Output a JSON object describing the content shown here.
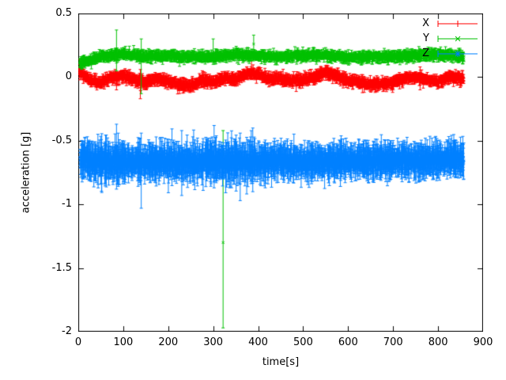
{
  "figure": {
    "background": "#ffffff"
  },
  "chart_data": {
    "type": "scatter",
    "plot_style": "points-with-errorbars",
    "title": "",
    "xlabel": "time[s]",
    "ylabel": "acceleration [g]",
    "xlim": [
      0,
      900
    ],
    "ylim": [
      -2,
      0.5
    ],
    "grid": false,
    "legend": {
      "position": "top-right",
      "entries": [
        {
          "name": "X",
          "color": "#ff0000",
          "marker": "plus"
        },
        {
          "name": "Y",
          "color": "#00c000",
          "marker": "times"
        },
        {
          "name": "Z",
          "color": "#0080ff",
          "marker": "star"
        }
      ]
    },
    "x_ticks": [
      {
        "v": 0,
        "label": "0"
      },
      {
        "v": 100,
        "label": "100"
      },
      {
        "v": 200,
        "label": "200"
      },
      {
        "v": 300,
        "label": "300"
      },
      {
        "v": 400,
        "label": "400"
      },
      {
        "v": 500,
        "label": "500"
      },
      {
        "v": 600,
        "label": "600"
      },
      {
        "v": 700,
        "label": "700"
      },
      {
        "v": 800,
        "label": "800"
      },
      {
        "v": 900,
        "label": "900"
      }
    ],
    "y_ticks": [
      {
        "v": 0.5,
        "label": "0.5"
      },
      {
        "v": 0,
        "label": "0"
      },
      {
        "v": -0.5,
        "label": "-0.5"
      },
      {
        "v": -1,
        "label": "-1"
      },
      {
        "v": -1.5,
        "label": "-1.5"
      },
      {
        "v": -2,
        "label": "-2"
      }
    ],
    "series": [
      {
        "name": "X",
        "color": "#ff0000",
        "marker": "plus",
        "seed": 101,
        "t_range": [
          2,
          857
        ],
        "n_points": 1500,
        "noise": 0.013,
        "err_base": 0.02,
        "err_var": 0.03,
        "err_boost_before": 0,
        "err_boost_prob": 0,
        "err_boost_mult": 1,
        "baseline_t": [
          0,
          25,
          50,
          75,
          100,
          125,
          150,
          175,
          200,
          225,
          250,
          275,
          300,
          325,
          350,
          375,
          400,
          425,
          450,
          475,
          500,
          525,
          550,
          575,
          600,
          625,
          650,
          675,
          700,
          725,
          750,
          775,
          800,
          825,
          857
        ],
        "baseline_v": [
          0.05,
          -0.02,
          -0.04,
          0.0,
          0.01,
          -0.02,
          -0.04,
          -0.01,
          -0.03,
          -0.06,
          -0.07,
          -0.02,
          -0.04,
          -0.01,
          -0.02,
          0.03,
          0.02,
          -0.02,
          -0.01,
          -0.03,
          -0.02,
          0.0,
          0.04,
          0.01,
          -0.03,
          -0.04,
          -0.06,
          -0.05,
          -0.04,
          -0.01,
          0.0,
          -0.02,
          -0.04,
          0.0,
          -0.01
        ],
        "extra_points": [
          {
            "t": 3,
            "v": 0.1,
            "ylow": 0.06,
            "yhigh": 0.14
          },
          {
            "t": 85,
            "v": -0.03,
            "ylow": -0.1,
            "yhigh": 0.04
          },
          {
            "t": 138,
            "v": -0.04,
            "ylow": -0.17,
            "yhigh": 0.06
          },
          {
            "t": 385,
            "v": 0.06,
            "ylow": -0.02,
            "yhigh": 0.13
          },
          {
            "t": 760,
            "v": -0.01,
            "ylow": -0.1,
            "yhigh": 0.08
          }
        ]
      },
      {
        "name": "Y",
        "color": "#00c000",
        "marker": "times",
        "seed": 202,
        "t_range": [
          3,
          857
        ],
        "n_points": 1500,
        "noise": 0.011,
        "err_base": 0.018,
        "err_var": 0.03,
        "err_boost_before": 0,
        "err_boost_prob": 0,
        "err_boost_mult": 1,
        "baseline_t": [
          0,
          25,
          50,
          100,
          150,
          200,
          250,
          300,
          350,
          400,
          450,
          500,
          550,
          600,
          650,
          700,
          750,
          800,
          857
        ],
        "baseline_v": [
          0.1,
          0.13,
          0.16,
          0.18,
          0.16,
          0.17,
          0.155,
          0.16,
          0.175,
          0.17,
          0.16,
          0.17,
          0.17,
          0.155,
          0.16,
          0.16,
          0.17,
          0.18,
          0.16
        ],
        "extra_points": [
          {
            "t": 85,
            "v": 0.22,
            "ylow": 0.05,
            "yhigh": 0.37
          },
          {
            "t": 140,
            "v": 0.14,
            "ylow": -0.13,
            "yhigh": 0.3
          },
          {
            "t": 300,
            "v": 0.2,
            "ylow": 0.1,
            "yhigh": 0.3
          },
          {
            "t": 322,
            "v": -1.3,
            "ylow": -1.97,
            "yhigh": -0.42
          },
          {
            "t": 390,
            "v": 0.26,
            "ylow": 0.15,
            "yhigh": 0.33
          }
        ]
      },
      {
        "name": "Z",
        "color": "#0080ff",
        "marker": "star",
        "seed": 303,
        "t_range": [
          4,
          857
        ],
        "n_points": 1700,
        "noise": 0.024,
        "err_base": 0.05,
        "err_var": 0.11,
        "err_boost_before": 420,
        "err_boost_prob": 0.2,
        "err_boost_mult": 1.45,
        "baseline_t": [
          0,
          50,
          100,
          150,
          200,
          250,
          300,
          350,
          400,
          450,
          500,
          550,
          600,
          650,
          700,
          750,
          800,
          857
        ],
        "baseline_v": [
          -0.63,
          -0.665,
          -0.66,
          -0.67,
          -0.665,
          -0.67,
          -0.66,
          -0.67,
          -0.665,
          -0.66,
          -0.67,
          -0.665,
          -0.655,
          -0.66,
          -0.65,
          -0.655,
          -0.645,
          -0.65
        ],
        "extra_points": [
          {
            "t": 85,
            "v": -0.6,
            "ylow": -0.88,
            "yhigh": -0.37
          },
          {
            "t": 140,
            "v": -0.7,
            "ylow": -1.03,
            "yhigh": -0.44
          },
          {
            "t": 230,
            "v": -0.66,
            "ylow": -0.93,
            "yhigh": -0.42
          },
          {
            "t": 302,
            "v": -0.62,
            "ylow": -0.87,
            "yhigh": -0.38
          },
          {
            "t": 360,
            "v": -0.68,
            "ylow": -0.97,
            "yhigh": -0.44
          },
          {
            "t": 388,
            "v": -0.64,
            "ylow": -0.9,
            "yhigh": -0.4
          }
        ]
      }
    ]
  }
}
